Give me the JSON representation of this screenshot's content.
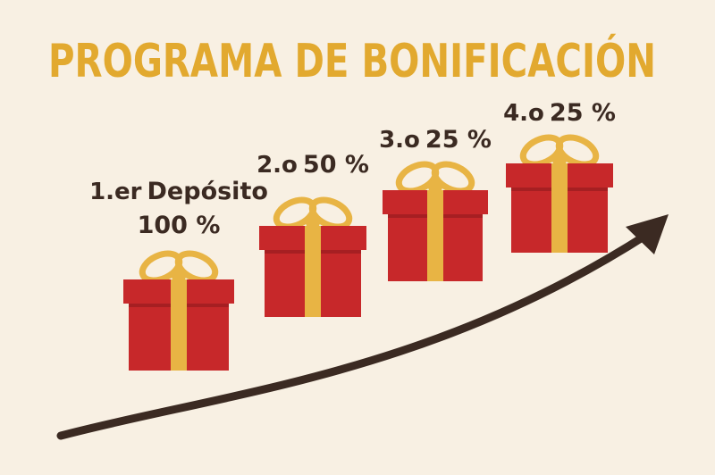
{
  "header": {
    "title": "PROGRAMA DE BONIFICACIÓN"
  },
  "steps": [
    {
      "ordinal": "1.er",
      "label": "Depósito",
      "bonus": "100 %"
    },
    {
      "ordinal": "2.o",
      "bonus": "50 %"
    },
    {
      "ordinal": "3.o",
      "bonus": "25 %"
    },
    {
      "ordinal": "4.o",
      "bonus": "25 %"
    }
  ]
}
